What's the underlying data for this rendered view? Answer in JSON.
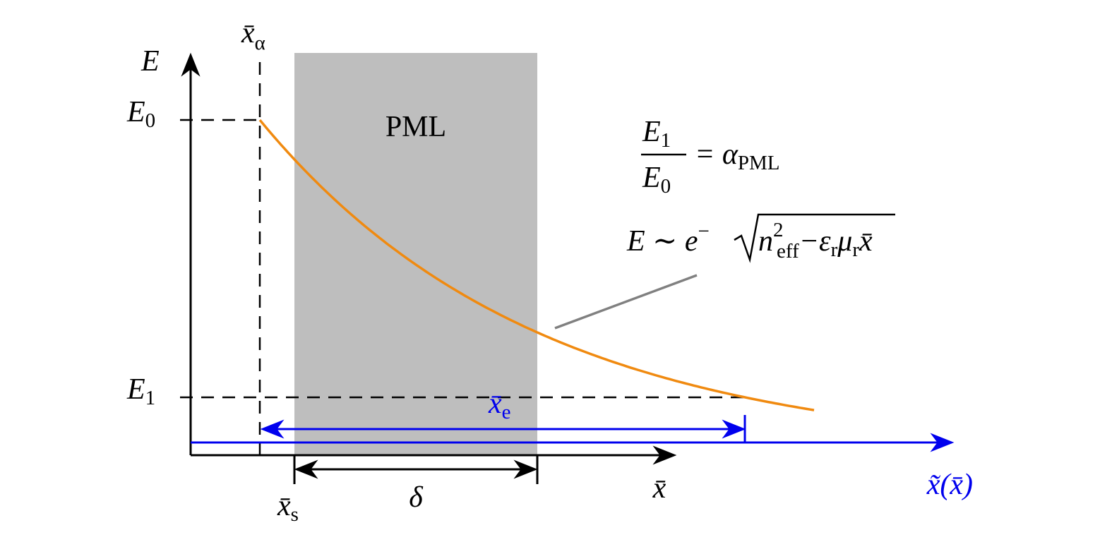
{
  "labels": {
    "e_axis": "E",
    "x_alpha": {
      "base": "x̄",
      "sub": "α"
    },
    "e0": {
      "base": "E",
      "sub": "0"
    },
    "e1": {
      "base": "E",
      "sub": "1"
    },
    "pml": "PML",
    "ratio": {
      "numerator": {
        "base": "E",
        "sub": "1"
      },
      "denominator": {
        "base": "E",
        "sub": "0"
      },
      "rhs": "= α",
      "rhs_sub": "PML"
    },
    "decay": {
      "lhs": "E ∼ e",
      "exp_sign": "−",
      "root": "√",
      "n": "n",
      "n_sup": "2",
      "n_sub": "eff",
      "minus": "−ε",
      "eps_sub": "r",
      "mu": "μ",
      "mu_sub": "r",
      "x": "x̄"
    },
    "x_e": {
      "base": "x̄",
      "sub": "e"
    },
    "x_s": {
      "base": "x̄",
      "sub": "s"
    },
    "delta": "δ",
    "x_bar": "x̄",
    "x_tilde": "x̃(x̄)"
  }
}
